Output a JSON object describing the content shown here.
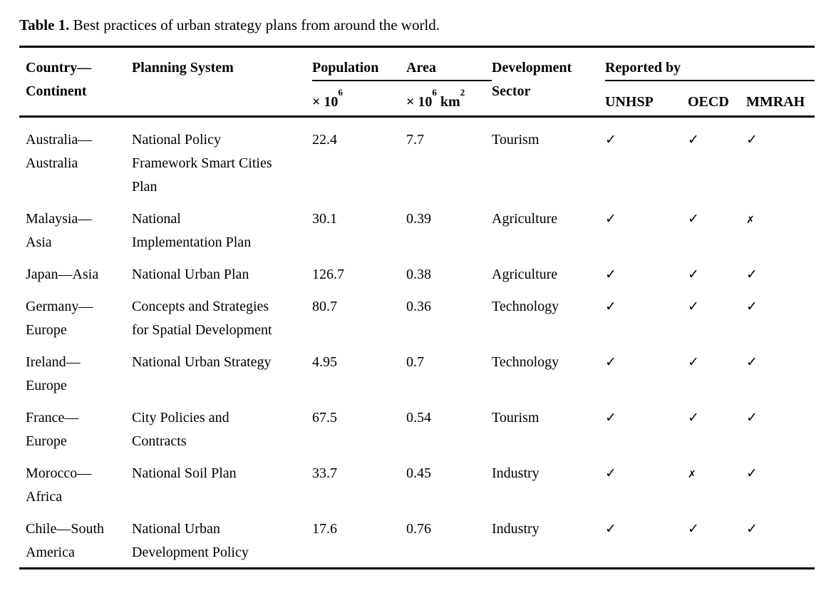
{
  "title": {
    "label": "Table 1.",
    "text": "Best practices of urban strategy plans from around the world."
  },
  "colors": {
    "text": "#000000",
    "rule": "#000000",
    "background": "#ffffff"
  },
  "marks": {
    "check": "✓",
    "cross": "✗"
  },
  "table": {
    "headers": {
      "country": "Country—\nContinent",
      "planning": "Planning System",
      "population": "Population",
      "area": "Area",
      "development": "Development\nSector",
      "reported_by": "Reported by",
      "population_unit": {
        "base": "× 10",
        "sup": "6"
      },
      "area_unit": {
        "base": "× 10",
        "sup": "6",
        "base2": " km",
        "sup2": "2"
      },
      "unhsp": "UNHSP",
      "oecd": "OECD",
      "mmrah": "MMRAH"
    },
    "rows": [
      {
        "country": "Australia—\nAustralia",
        "planning": "National Policy\nFramework Smart Cities\nPlan",
        "population": "22.4",
        "area": "7.7",
        "sector": "Tourism",
        "unhsp": "✓",
        "oecd": "✓",
        "mmrah": "✓"
      },
      {
        "country": "Malaysia—\nAsia",
        "planning": "National\nImplementation Plan",
        "population": "30.1",
        "area": "0.39",
        "sector": "Agriculture",
        "unhsp": "✓",
        "oecd": "✓",
        "mmrah": "✗"
      },
      {
        "country": "Japan—Asia",
        "planning": "National Urban Plan",
        "population": "126.7",
        "area": "0.38",
        "sector": "Agriculture",
        "unhsp": "✓",
        "oecd": "✓",
        "mmrah": "✓"
      },
      {
        "country": "Germany—\nEurope",
        "planning": "Concepts and Strategies\nfor Spatial Development",
        "population": "80.7",
        "area": "0.36",
        "sector": "Technology",
        "unhsp": "✓",
        "oecd": "✓",
        "mmrah": "✓"
      },
      {
        "country": "Ireland—\nEurope",
        "planning": "National Urban Strategy",
        "population": "4.95",
        "area": "0.7",
        "sector": "Technology",
        "unhsp": "✓",
        "oecd": "✓",
        "mmrah": "✓"
      },
      {
        "country": "France—\nEurope",
        "planning": "City Policies and\nContracts",
        "population": "67.5",
        "area": "0.54",
        "sector": "Tourism",
        "unhsp": "✓",
        "oecd": "✓",
        "mmrah": "✓"
      },
      {
        "country": "Morocco—\nAfrica",
        "planning": "National Soil Plan",
        "population": "33.7",
        "area": "0.45",
        "sector": "Industry",
        "unhsp": "✓",
        "oecd": "✗",
        "mmrah": "✓"
      },
      {
        "country": "Chile—South\nAmerica",
        "planning": "National Urban\nDevelopment Policy",
        "population": "17.6",
        "area": "0.76",
        "sector": "Industry",
        "unhsp": "✓",
        "oecd": "✓",
        "mmrah": "✓"
      }
    ]
  }
}
